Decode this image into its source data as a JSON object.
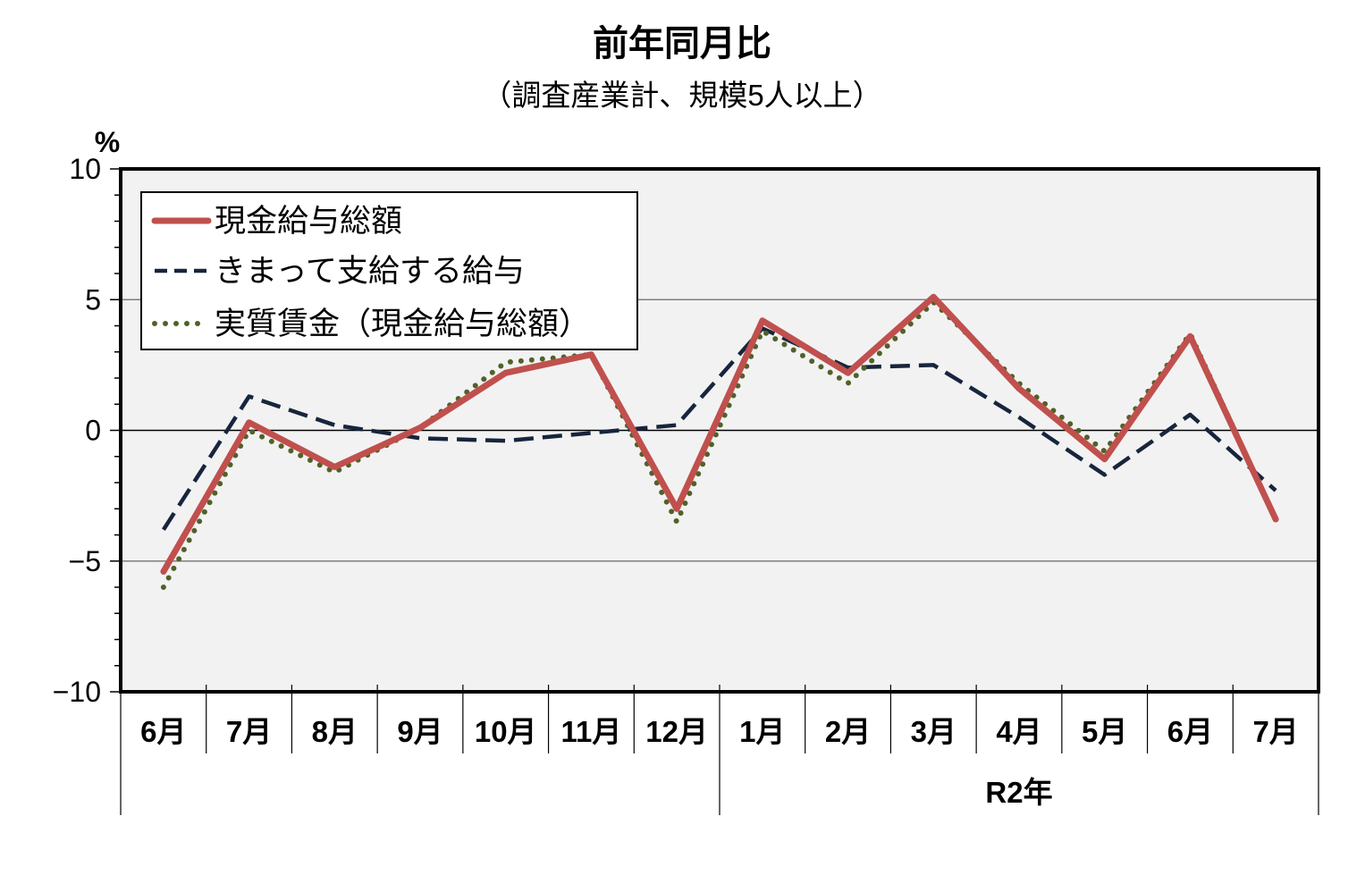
{
  "chart_data": {
    "type": "line",
    "title": "前年同月比",
    "subtitle": "（調査産業計、規模5人以上）",
    "ylabel": "%",
    "ylim": [
      -10,
      10
    ],
    "yticks": [
      "10",
      "5",
      "0",
      "−5",
      "−10"
    ],
    "ytick_values": [
      10,
      5,
      0,
      -5,
      -10
    ],
    "grid": true,
    "legend_position": "top-left",
    "categories": [
      "6月",
      "7月",
      "8月",
      "9月",
      "10月",
      "11月",
      "12月",
      "1月",
      "2月",
      "3月",
      "4月",
      "5月",
      "6月",
      "7月"
    ],
    "year_label": "R2年",
    "series": [
      {
        "name": "現金給与総額",
        "style": "solid",
        "color": "#c0504d",
        "values": [
          -5.4,
          0.3,
          -1.4,
          0.1,
          2.2,
          2.9,
          -3.0,
          4.2,
          2.2,
          5.1,
          1.6,
          -1.1,
          3.6,
          -3.4
        ]
      },
      {
        "name": "きまって支給する給与",
        "style": "dashed",
        "color": "#17253d",
        "values": [
          -3.8,
          1.3,
          0.2,
          -0.3,
          -0.4,
          -0.1,
          0.2,
          3.9,
          2.4,
          2.5,
          0.5,
          -1.7,
          0.6,
          -2.3
        ]
      },
      {
        "name": "実質賃金（現金給与総額）",
        "style": "dotted",
        "color": "#4f6228",
        "values": [
          -6.0,
          0.0,
          -1.6,
          0.1,
          2.6,
          2.9,
          -3.5,
          3.8,
          1.8,
          4.9,
          1.8,
          -0.8,
          3.7,
          -3.4
        ]
      }
    ]
  }
}
